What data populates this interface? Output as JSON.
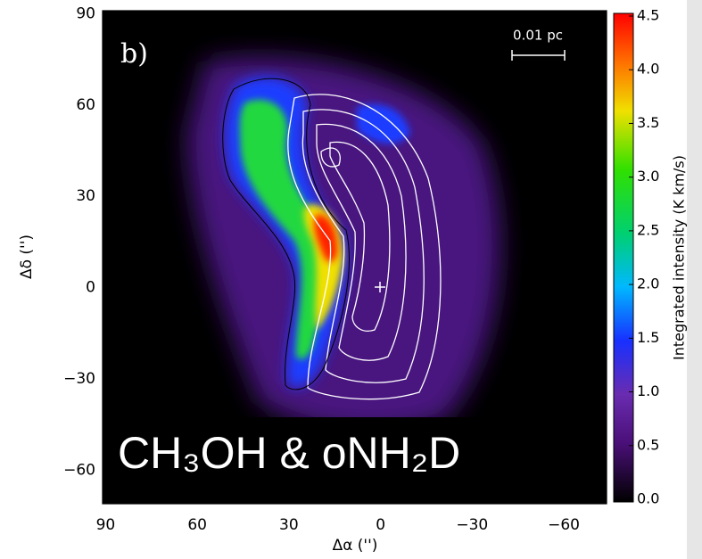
{
  "chart_data": {
    "type": "map",
    "panel_label": "b)",
    "overlay_label": "CH₃OH & oNH₂D",
    "scale_bar_label": "0.01 pc",
    "xlabel": "Δα ('')",
    "ylabel": "Δδ ('')",
    "xlim": [
      91,
      -74
    ],
    "ylim": [
      -71,
      91
    ],
    "xticks": [
      90,
      60,
      30,
      0,
      {
        "value": -30,
        "label": "−30"
      },
      {
        "value": -60,
        "label": "−60"
      }
    ],
    "yticks": [
      90,
      60,
      30,
      0,
      {
        "value": -30,
        "label": "−30"
      },
      {
        "value": -60,
        "label": "−60"
      }
    ],
    "colorbar": {
      "label": "Integrated intensity (K km/s)",
      "lim": [
        0,
        4.5
      ],
      "ticks": [
        {
          "value": 0,
          "label": "0.0"
        },
        0.5,
        {
          "value": 1,
          "label": "1.0"
        },
        1.5,
        {
          "value": 2,
          "label": "2.0"
        },
        2.5,
        {
          "value": 3,
          "label": "3.0"
        },
        3.5,
        {
          "value": 4,
          "label": "4.0"
        },
        4.5
      ]
    }
  }
}
